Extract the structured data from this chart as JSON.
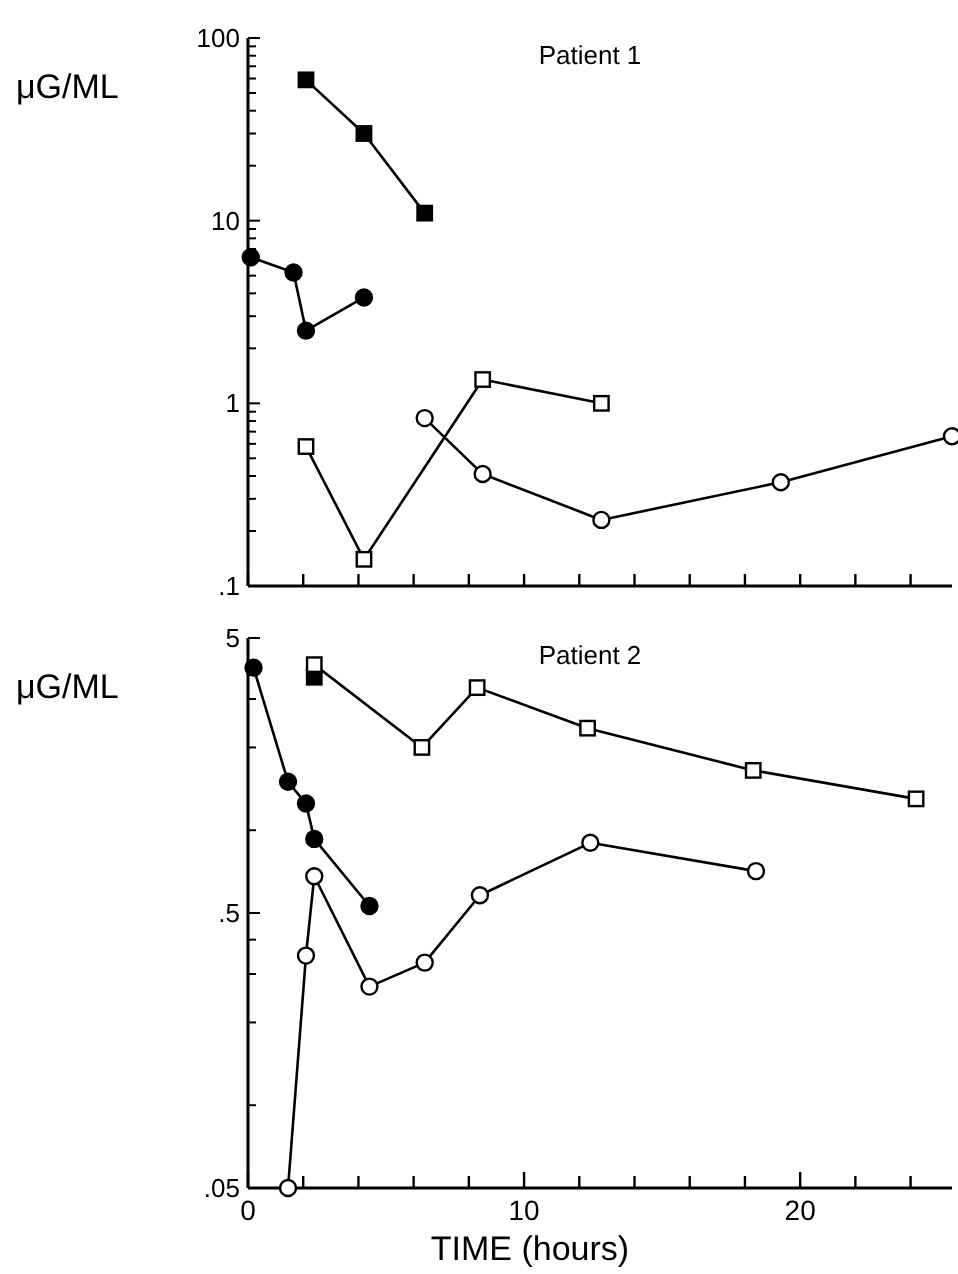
{
  "chart_data": [
    {
      "type": "line",
      "title": "Patient 1",
      "ylabel": "μG/ML",
      "log": "y",
      "xlim": [
        0,
        25.5
      ],
      "ylim": [
        0.1,
        100
      ],
      "tick_labels": "y",
      "marker": "circle",
      "line_style": "solid",
      "grid": false,
      "xticks": [
        {
          "value": 0,
          "label": null
        },
        {
          "value": 2,
          "label": null
        },
        {
          "value": 4,
          "label": null
        },
        {
          "value": 6,
          "label": null
        },
        {
          "value": 8,
          "label": null
        },
        {
          "value": 10,
          "label": null
        },
        {
          "value": 12,
          "label": null
        },
        {
          "value": 14,
          "label": null
        },
        {
          "value": 16,
          "label": null
        },
        {
          "value": 18,
          "label": null
        },
        {
          "value": 20,
          "label": null
        },
        {
          "value": 22,
          "label": null
        },
        {
          "value": 24,
          "label": null
        }
      ],
      "yticks": [
        {
          "value": 0.1,
          "label": ".1"
        },
        {
          "value": 0.2,
          "label": null
        },
        {
          "value": 0.3,
          "label": null
        },
        {
          "value": 0.4,
          "label": null
        },
        {
          "value": 0.5,
          "label": null
        },
        {
          "value": 0.6,
          "label": null
        },
        {
          "value": 0.7,
          "label": null
        },
        {
          "value": 0.8,
          "label": null
        },
        {
          "value": 0.9,
          "label": null
        },
        1,
        {
          "value": 2,
          "label": null
        },
        {
          "value": 3,
          "label": null
        },
        {
          "value": 4,
          "label": null
        },
        {
          "value": 5,
          "label": null
        },
        {
          "value": 6,
          "label": null
        },
        {
          "value": 7,
          "label": null
        },
        {
          "value": 8,
          "label": null
        },
        {
          "value": 9,
          "label": null
        },
        10,
        {
          "value": 20,
          "label": null
        },
        {
          "value": 30,
          "label": null
        },
        {
          "value": 40,
          "label": null
        },
        {
          "value": 50,
          "label": null
        },
        {
          "value": 60,
          "label": null
        },
        {
          "value": 70,
          "label": null
        },
        {
          "value": 80,
          "label": null
        },
        {
          "value": 90,
          "label": null
        },
        100
      ],
      "series": [
        {
          "color": "#000000",
          "marker": "square",
          "x": [
            2.1,
            4.2,
            6.4
          ],
          "values": [
            59,
            30,
            11
          ]
        },
        {
          "color": "#000000",
          "x": [
            0.1,
            1.65,
            2.1,
            4.2
          ],
          "values": [
            6.3,
            5.2,
            2.5,
            3.8
          ]
        },
        {
          "color": "#ffffff",
          "marker": "square",
          "x": [
            2.1,
            4.2,
            8.5,
            12.8
          ],
          "values": [
            0.58,
            0.14,
            1.35,
            1.0
          ]
        },
        {
          "color": "#ffffff",
          "x": [
            6.4,
            8.5,
            12.8,
            19.3,
            25.5
          ],
          "values": [
            0.83,
            0.41,
            0.23,
            0.37,
            0.66
          ]
        }
      ]
    },
    {
      "type": "line",
      "title": "Patient 2",
      "ylabel": "μG/ML",
      "xlabel": "TIME (hours)",
      "log": "y",
      "xlim": [
        0,
        25.5
      ],
      "ylim": [
        0.05,
        5
      ],
      "marker": "circle",
      "line_style": "solid",
      "grid": false,
      "xticks": [
        0,
        {
          "value": 2,
          "label": null
        },
        {
          "value": 4,
          "label": null
        },
        {
          "value": 6,
          "label": null
        },
        {
          "value": 8,
          "label": null
        },
        10,
        {
          "value": 12,
          "label": null
        },
        {
          "value": 14,
          "label": null
        },
        {
          "value": 16,
          "label": null
        },
        {
          "value": 18,
          "label": null
        },
        20,
        {
          "value": 22,
          "label": null
        },
        {
          "value": 24,
          "label": null
        }
      ],
      "yticks": [
        {
          "value": 0.05,
          "label": ".05"
        },
        {
          "value": 0.1,
          "label": null
        },
        {
          "value": 0.2,
          "label": null
        },
        {
          "value": 0.3,
          "label": null
        },
        {
          "value": 0.4,
          "label": null
        },
        {
          "value": 0.5,
          "label": ".5"
        },
        {
          "value": 1,
          "label": null
        },
        {
          "value": 2,
          "label": null
        },
        {
          "value": 3,
          "label": null
        },
        {
          "value": 4,
          "label": null
        },
        5
      ],
      "series": [
        {
          "color": "#000000",
          "x": [
            0.2,
            1.45,
            2.1,
            2.4,
            4.4
          ],
          "values": [
            3.9,
            1.5,
            1.25,
            0.93,
            0.53
          ]
        },
        {
          "color": "#000000",
          "marker": "square",
          "x": [
            2.4
          ],
          "values": [
            3.6
          ]
        },
        {
          "color": "#ffffff",
          "marker": "square",
          "x": [
            2.4,
            6.3,
            8.3,
            12.3,
            18.3,
            24.2
          ],
          "values": [
            4.0,
            2.0,
            3.3,
            2.35,
            1.65,
            1.3
          ]
        },
        {
          "color": "#ffffff",
          "x": [
            1.45,
            2.1,
            2.4,
            4.4,
            6.4,
            8.4,
            12.4,
            18.4
          ],
          "values": [
            0.05,
            0.35,
            0.68,
            0.27,
            0.33,
            0.58,
            0.9,
            0.71
          ]
        }
      ]
    }
  ]
}
